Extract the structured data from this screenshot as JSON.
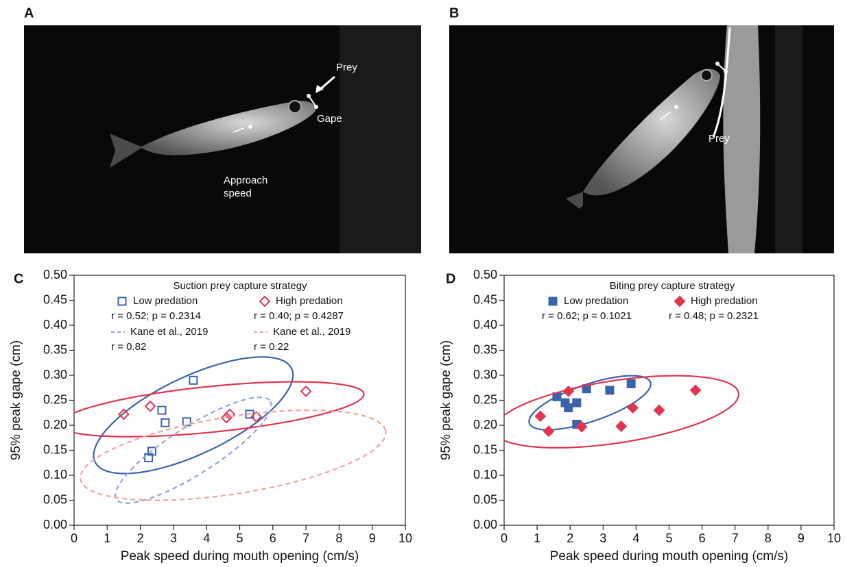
{
  "panel_labels": [
    "A",
    "B",
    "C",
    "D"
  ],
  "photo_a": {
    "prey": "Prey",
    "gape": "Gape",
    "approach": "Approach speed"
  },
  "photo_b": {
    "prey": "Prey"
  },
  "chart_data": [
    {
      "type": "scatter",
      "legend_title": "Suction prey capture strategy",
      "xlabel": "Peak speed during mouth opening (cm/s)",
      "ylabel": "95% peak gape (cm)",
      "xlim": [
        0,
        10
      ],
      "ylim": [
        0,
        0.5
      ],
      "xticks": [
        0,
        1,
        2,
        3,
        4,
        5,
        6,
        7,
        8,
        9,
        10
      ],
      "yticks": [
        {
          "value": 0,
          "label": "0.00"
        },
        {
          "value": 0.05,
          "label": "0.05"
        },
        {
          "value": 0.1,
          "label": "0.10"
        },
        {
          "value": 0.15,
          "label": "0.15"
        },
        {
          "value": 0.2,
          "label": "0.20"
        },
        {
          "value": 0.25,
          "label": "0.25"
        },
        {
          "value": 0.3,
          "label": "0.30"
        },
        {
          "value": 0.35,
          "label": "0.35"
        },
        {
          "value": 0.4,
          "label": "0.40"
        },
        {
          "value": 0.45,
          "label": "0.45"
        },
        {
          "value": 0.5,
          "label": "0.50"
        }
      ],
      "series": [
        {
          "name": "Low predation",
          "stats": "r = 0.52; p = 0.2314",
          "color": "#3a62ad",
          "marker": "square",
          "filled": false,
          "x": [
            3.6,
            2.65,
            2.75,
            3.4,
            5.3,
            2.35,
            2.25
          ],
          "values": [
            0.29,
            0.23,
            0.205,
            0.207,
            0.222,
            0.148,
            0.135
          ],
          "ellipse": {
            "center": [
              3.6,
              0.22
            ],
            "axis1": [
              2.9,
              0.1
            ],
            "axis2": [
              -0.8,
              0.06
            ]
          }
        },
        {
          "name": "High predation",
          "stats": "r = 0.40; p = 0.4287",
          "color": "#e0344f",
          "marker": "diamond",
          "filled": false,
          "x": [
            1.5,
            2.3,
            4.6,
            4.7,
            5.5,
            7.0
          ],
          "values": [
            0.222,
            0.238,
            0.215,
            0.222,
            0.217,
            0.268
          ],
          "ellipse": {
            "center": [
              4.15,
              0.232
            ],
            "axis1": [
              4.6,
              0.03
            ],
            "axis2": [
              0,
              0.046
            ]
          }
        },
        {
          "name": "Kane et al., 2019",
          "stats": "r = 0.82",
          "color": "#8ea5d8",
          "dashed": true,
          "ellipse": {
            "center": [
              3.6,
              0.15
            ],
            "axis1": [
              2.3,
              0.1
            ],
            "axis2": [
              -0.5,
              0.035
            ]
          }
        },
        {
          "name": "Kane et al., 2019",
          "stats": "r = 0.22",
          "color": "#f3a19b",
          "dashed": true,
          "ellipse": {
            "center": [
              4.8,
              0.14
            ],
            "axis1": [
              4.6,
              0.05
            ],
            "axis2": [
              -0.3,
              0.075
            ]
          }
        }
      ]
    },
    {
      "type": "scatter",
      "legend_title": "Biting prey capture strategy",
      "xlabel": "Peak speed during mouth opening (cm/s)",
      "ylabel": "95% peak gape (cm)",
      "xlim": [
        0,
        10
      ],
      "ylim": [
        0,
        0.5
      ],
      "xticks": [
        0,
        1,
        2,
        3,
        4,
        5,
        6,
        7,
        8,
        9,
        10
      ],
      "yticks": [
        {
          "value": 0,
          "label": "0.00"
        },
        {
          "value": 0.05,
          "label": "0.05"
        },
        {
          "value": 0.1,
          "label": "0.10"
        },
        {
          "value": 0.15,
          "label": "0.15"
        },
        {
          "value": 0.2,
          "label": "0.20"
        },
        {
          "value": 0.25,
          "label": "0.25"
        },
        {
          "value": 0.3,
          "label": "0.30"
        },
        {
          "value": 0.35,
          "label": "0.35"
        },
        {
          "value": 0.4,
          "label": "0.40"
        },
        {
          "value": 0.45,
          "label": "0.45"
        },
        {
          "value": 0.5,
          "label": "0.50"
        }
      ],
      "series": [
        {
          "name": "Low predation",
          "stats": "r = 0.62; p = 0.1021",
          "color": "#3a62ad",
          "marker": "square",
          "filled": true,
          "x": [
            1.6,
            1.85,
            1.95,
            2.2,
            2.2,
            2.5,
            3.2,
            3.85
          ],
          "values": [
            0.257,
            0.245,
            0.235,
            0.245,
            0.202,
            0.273,
            0.27,
            0.283
          ],
          "ellipse": {
            "center": [
              2.6,
              0.245
            ],
            "axis1": [
              1.8,
              0.045
            ],
            "axis2": [
              -0.4,
              0.03
            ]
          }
        },
        {
          "name": "High predation",
          "stats": "r = 0.48; p = 0.2321",
          "color": "#e0344f",
          "marker": "diamond",
          "filled": true,
          "x": [
            1.1,
            1.35,
            1.95,
            2.35,
            3.55,
            3.9,
            4.7,
            5.8
          ],
          "values": [
            0.218,
            0.188,
            0.268,
            0.197,
            0.198,
            0.235,
            0.23,
            0.27
          ],
          "ellipse": {
            "center": [
              3.4,
              0.227
            ],
            "axis1": [
              3.7,
              0.04
            ],
            "axis2": [
              -0.3,
              0.06
            ]
          }
        }
      ]
    }
  ]
}
